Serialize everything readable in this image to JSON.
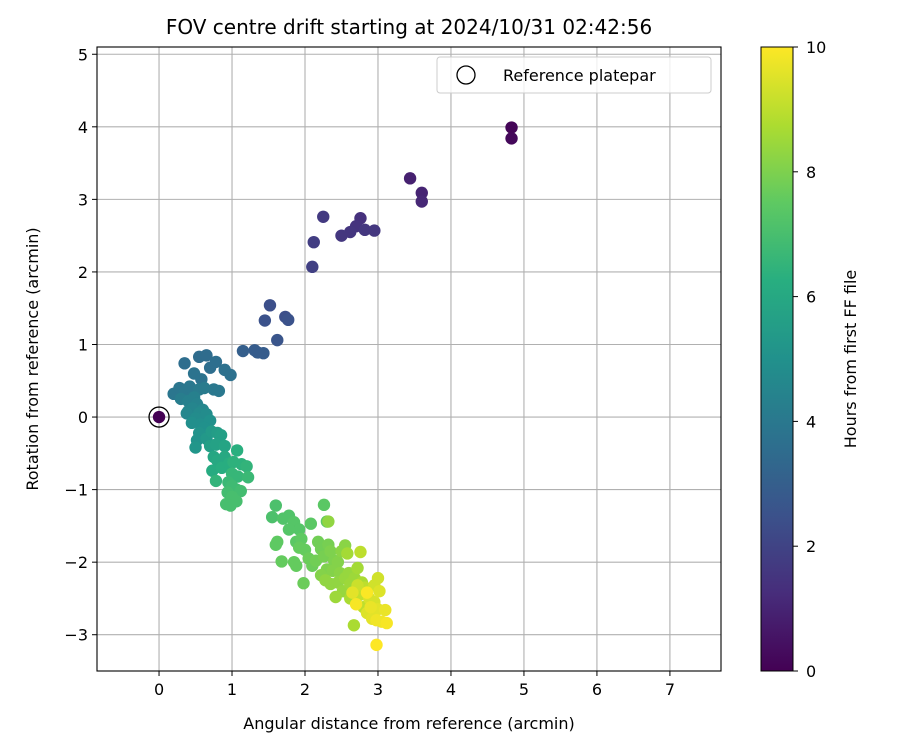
{
  "chart_data": {
    "type": "scatter",
    "title": "FOV centre drift starting at 2024/10/31 02:42:56",
    "xlabel": "Angular distance from reference (arcmin)",
    "ylabel": "Rotation from reference (arcmin)",
    "xlim": [
      -0.85,
      7.7
    ],
    "ylim": [
      -3.5,
      5.1
    ],
    "xticks": [
      0,
      1,
      2,
      3,
      4,
      5,
      6,
      7
    ],
    "yticks": [
      -3,
      -2,
      -1,
      0,
      1,
      2,
      3,
      4,
      5
    ],
    "xtick_labels": [
      "0",
      "1",
      "2",
      "3",
      "4",
      "5",
      "6",
      "7"
    ],
    "ytick_labels": [
      "−3",
      "−2",
      "−1",
      "0",
      "1",
      "2",
      "3",
      "4",
      "5"
    ],
    "grid": true,
    "legend": {
      "location": "top-right",
      "entries": [
        "Reference platepar"
      ]
    },
    "reference_point": {
      "x": 0,
      "y": 0
    },
    "colorbar": {
      "label": "Hours from first FF file",
      "range": [
        0,
        10
      ],
      "ticks": [
        0,
        2,
        4,
        6,
        8,
        10
      ],
      "tick_labels": [
        "0",
        "2",
        "4",
        "6",
        "8",
        "10"
      ],
      "colormap": "viridis"
    },
    "points": [
      {
        "x": 4.83,
        "y": 3.99,
        "c": 0.1
      },
      {
        "x": 4.83,
        "y": 3.84,
        "c": 0.2
      },
      {
        "x": 3.44,
        "y": 3.29,
        "c": 0.9
      },
      {
        "x": 3.6,
        "y": 3.09,
        "c": 1.0
      },
      {
        "x": 3.6,
        "y": 2.97,
        "c": 1.1
      },
      {
        "x": 2.76,
        "y": 2.74,
        "c": 1.4
      },
      {
        "x": 2.7,
        "y": 2.63,
        "c": 1.5
      },
      {
        "x": 2.62,
        "y": 2.55,
        "c": 1.55
      },
      {
        "x": 2.5,
        "y": 2.5,
        "c": 1.6
      },
      {
        "x": 2.82,
        "y": 2.58,
        "c": 1.6
      },
      {
        "x": 2.95,
        "y": 2.57,
        "c": 1.6
      },
      {
        "x": 2.25,
        "y": 2.76,
        "c": 1.7
      },
      {
        "x": 2.12,
        "y": 2.41,
        "c": 1.8
      },
      {
        "x": 2.1,
        "y": 2.07,
        "c": 1.9
      },
      {
        "x": 1.52,
        "y": 1.54,
        "c": 2.4
      },
      {
        "x": 1.73,
        "y": 1.38,
        "c": 2.4
      },
      {
        "x": 1.77,
        "y": 1.34,
        "c": 2.5
      },
      {
        "x": 1.45,
        "y": 1.33,
        "c": 2.5
      },
      {
        "x": 1.62,
        "y": 1.06,
        "c": 2.6
      },
      {
        "x": 1.31,
        "y": 0.92,
        "c": 2.9
      },
      {
        "x": 1.35,
        "y": 0.89,
        "c": 2.9
      },
      {
        "x": 1.15,
        "y": 0.91,
        "c": 3.0
      },
      {
        "x": 1.43,
        "y": 0.88,
        "c": 2.9
      },
      {
        "x": 0.35,
        "y": 0.74,
        "c": 3.6
      },
      {
        "x": 0.55,
        "y": 0.83,
        "c": 3.5
      },
      {
        "x": 0.65,
        "y": 0.85,
        "c": 3.5
      },
      {
        "x": 0.78,
        "y": 0.76,
        "c": 3.6
      },
      {
        "x": 0.9,
        "y": 0.65,
        "c": 3.7
      },
      {
        "x": 0.98,
        "y": 0.58,
        "c": 3.7
      },
      {
        "x": 0.7,
        "y": 0.68,
        "c": 3.6
      },
      {
        "x": 0.48,
        "y": 0.6,
        "c": 3.8
      },
      {
        "x": 0.58,
        "y": 0.52,
        "c": 3.8
      },
      {
        "x": 0.2,
        "y": 0.32,
        "c": 3.9
      },
      {
        "x": 0.28,
        "y": 0.4,
        "c": 3.9
      },
      {
        "x": 0.36,
        "y": 0.35,
        "c": 4.0
      },
      {
        "x": 0.42,
        "y": 0.42,
        "c": 4.0
      },
      {
        "x": 0.55,
        "y": 0.38,
        "c": 4.1
      },
      {
        "x": 0.62,
        "y": 0.4,
        "c": 4.1
      },
      {
        "x": 0.75,
        "y": 0.38,
        "c": 4.0
      },
      {
        "x": 0.82,
        "y": 0.36,
        "c": 4.0
      },
      {
        "x": 0.3,
        "y": 0.25,
        "c": 4.2
      },
      {
        "x": 0.4,
        "y": 0.22,
        "c": 4.3
      },
      {
        "x": 0.48,
        "y": 0.27,
        "c": 4.3
      },
      {
        "x": 0.52,
        "y": 0.18,
        "c": 4.4
      },
      {
        "x": 0.4,
        "y": 0.08,
        "c": 4.5
      },
      {
        "x": 0.38,
        "y": 0.05,
        "c": 4.6
      },
      {
        "x": 0.46,
        "y": 0.12,
        "c": 4.5
      },
      {
        "x": 0.55,
        "y": 0.05,
        "c": 4.7
      },
      {
        "x": 0.6,
        "y": 0.1,
        "c": 4.6
      },
      {
        "x": 0.65,
        "y": 0.04,
        "c": 4.8
      },
      {
        "x": 0.5,
        "y": -0.02,
        "c": 4.8
      },
      {
        "x": 0.45,
        "y": -0.08,
        "c": 4.9
      },
      {
        "x": 0.57,
        "y": -0.1,
        "c": 4.9
      },
      {
        "x": 0.7,
        "y": -0.05,
        "c": 5.0
      },
      {
        "x": 0.62,
        "y": -0.15,
        "c": 5.0
      },
      {
        "x": 0.55,
        "y": -0.22,
        "c": 5.1
      },
      {
        "x": 0.52,
        "y": -0.32,
        "c": 5.1
      },
      {
        "x": 0.5,
        "y": -0.42,
        "c": 5.2
      },
      {
        "x": 0.65,
        "y": -0.3,
        "c": 5.3
      },
      {
        "x": 0.72,
        "y": -0.2,
        "c": 5.4
      },
      {
        "x": 0.8,
        "y": -0.22,
        "c": 5.5
      },
      {
        "x": 0.85,
        "y": -0.25,
        "c": 5.6
      },
      {
        "x": 0.7,
        "y": -0.4,
        "c": 5.6
      },
      {
        "x": 0.78,
        "y": -0.38,
        "c": 5.7
      },
      {
        "x": 0.9,
        "y": -0.4,
        "c": 5.8
      },
      {
        "x": 0.75,
        "y": -0.55,
        "c": 5.9
      },
      {
        "x": 0.8,
        "y": -0.6,
        "c": 6.0
      },
      {
        "x": 0.9,
        "y": -0.55,
        "c": 6.0
      },
      {
        "x": 0.73,
        "y": -0.74,
        "c": 6.1
      },
      {
        "x": 0.86,
        "y": -0.7,
        "c": 6.2
      },
      {
        "x": 0.96,
        "y": -0.64,
        "c": 6.2
      },
      {
        "x": 1.07,
        "y": -0.46,
        "c": 6.3
      },
      {
        "x": 1.02,
        "y": -0.62,
        "c": 6.4
      },
      {
        "x": 1.13,
        "y": -0.65,
        "c": 6.4
      },
      {
        "x": 1.2,
        "y": -0.68,
        "c": 6.5
      },
      {
        "x": 0.78,
        "y": -0.88,
        "c": 6.5
      },
      {
        "x": 1.0,
        "y": -0.78,
        "c": 6.6
      },
      {
        "x": 1.08,
        "y": -0.82,
        "c": 6.6
      },
      {
        "x": 1.22,
        "y": -0.83,
        "c": 6.7
      },
      {
        "x": 0.95,
        "y": -0.9,
        "c": 6.7
      },
      {
        "x": 1.0,
        "y": -0.95,
        "c": 6.8
      },
      {
        "x": 1.06,
        "y": -1.0,
        "c": 6.8
      },
      {
        "x": 0.94,
        "y": -1.04,
        "c": 6.9
      },
      {
        "x": 1.12,
        "y": -1.02,
        "c": 6.9
      },
      {
        "x": 1.0,
        "y": -1.1,
        "c": 7.0
      },
      {
        "x": 1.06,
        "y": -1.16,
        "c": 7.0
      },
      {
        "x": 0.92,
        "y": -1.2,
        "c": 7.0
      },
      {
        "x": 0.98,
        "y": -1.22,
        "c": 7.0
      },
      {
        "x": 1.6,
        "y": -1.22,
        "c": 7.1
      },
      {
        "x": 1.55,
        "y": -1.38,
        "c": 7.1
      },
      {
        "x": 1.7,
        "y": -1.4,
        "c": 7.2
      },
      {
        "x": 1.78,
        "y": -1.36,
        "c": 7.2
      },
      {
        "x": 1.85,
        "y": -1.45,
        "c": 7.3
      },
      {
        "x": 1.92,
        "y": -1.55,
        "c": 7.3
      },
      {
        "x": 1.78,
        "y": -1.55,
        "c": 7.3
      },
      {
        "x": 2.08,
        "y": -1.47,
        "c": 7.4
      },
      {
        "x": 2.26,
        "y": -1.21,
        "c": 7.4
      },
      {
        "x": 2.3,
        "y": -1.44,
        "c": 7.5
      },
      {
        "x": 1.88,
        "y": -1.72,
        "c": 7.4
      },
      {
        "x": 1.95,
        "y": -1.68,
        "c": 7.5
      },
      {
        "x": 1.62,
        "y": -1.72,
        "c": 7.5
      },
      {
        "x": 1.6,
        "y": -1.76,
        "c": 7.5
      },
      {
        "x": 1.92,
        "y": -1.8,
        "c": 7.6
      },
      {
        "x": 2.0,
        "y": -1.83,
        "c": 7.6
      },
      {
        "x": 1.68,
        "y": -1.99,
        "c": 7.6
      },
      {
        "x": 1.85,
        "y": -2.0,
        "c": 7.6
      },
      {
        "x": 1.88,
        "y": -2.05,
        "c": 7.6
      },
      {
        "x": 1.98,
        "y": -2.29,
        "c": 7.7
      },
      {
        "x": 2.05,
        "y": -1.95,
        "c": 7.7
      },
      {
        "x": 2.1,
        "y": -2.05,
        "c": 7.7
      },
      {
        "x": 2.15,
        "y": -1.98,
        "c": 7.8
      },
      {
        "x": 2.18,
        "y": -1.72,
        "c": 7.8
      },
      {
        "x": 2.22,
        "y": -1.82,
        "c": 7.8
      },
      {
        "x": 2.26,
        "y": -1.92,
        "c": 7.9
      },
      {
        "x": 2.32,
        "y": -1.76,
        "c": 7.9
      },
      {
        "x": 2.35,
        "y": -1.85,
        "c": 8.0
      },
      {
        "x": 2.4,
        "y": -1.98,
        "c": 8.0
      },
      {
        "x": 2.3,
        "y": -2.1,
        "c": 8.0
      },
      {
        "x": 2.22,
        "y": -2.18,
        "c": 8.1
      },
      {
        "x": 2.38,
        "y": -2.12,
        "c": 8.1
      },
      {
        "x": 2.45,
        "y": -2.0,
        "c": 8.1
      },
      {
        "x": 2.5,
        "y": -1.85,
        "c": 8.2
      },
      {
        "x": 2.55,
        "y": -1.77,
        "c": 8.2
      },
      {
        "x": 2.48,
        "y": -2.15,
        "c": 8.2
      },
      {
        "x": 2.28,
        "y": -2.25,
        "c": 8.3
      },
      {
        "x": 2.35,
        "y": -2.3,
        "c": 8.3
      },
      {
        "x": 2.45,
        "y": -2.28,
        "c": 8.3
      },
      {
        "x": 2.55,
        "y": -2.22,
        "c": 8.4
      },
      {
        "x": 2.6,
        "y": -2.15,
        "c": 8.4
      },
      {
        "x": 2.52,
        "y": -2.4,
        "c": 8.4
      },
      {
        "x": 2.62,
        "y": -2.3,
        "c": 8.5
      },
      {
        "x": 2.68,
        "y": -2.22,
        "c": 8.5
      },
      {
        "x": 2.42,
        "y": -2.48,
        "c": 8.5
      },
      {
        "x": 2.32,
        "y": -1.44,
        "c": 8.3
      },
      {
        "x": 2.58,
        "y": -1.88,
        "c": 8.6
      },
      {
        "x": 2.72,
        "y": -2.08,
        "c": 8.6
      },
      {
        "x": 2.78,
        "y": -2.28,
        "c": 8.7
      },
      {
        "x": 2.62,
        "y": -2.5,
        "c": 8.7
      },
      {
        "x": 2.67,
        "y": -2.87,
        "c": 8.7
      },
      {
        "x": 2.76,
        "y": -1.86,
        "c": 9.0
      },
      {
        "x": 2.82,
        "y": -2.35,
        "c": 9.0
      },
      {
        "x": 2.75,
        "y": -2.45,
        "c": 9.1
      },
      {
        "x": 2.8,
        "y": -2.62,
        "c": 9.0
      },
      {
        "x": 2.95,
        "y": -2.32,
        "c": 9.3
      },
      {
        "x": 3.0,
        "y": -2.22,
        "c": 9.3
      },
      {
        "x": 2.88,
        "y": -2.5,
        "c": 9.4
      },
      {
        "x": 2.95,
        "y": -2.55,
        "c": 9.4
      },
      {
        "x": 3.02,
        "y": -2.4,
        "c": 9.5
      },
      {
        "x": 2.85,
        "y": -2.7,
        "c": 9.5
      },
      {
        "x": 2.92,
        "y": -2.78,
        "c": 9.6
      },
      {
        "x": 3.0,
        "y": -2.65,
        "c": 9.6
      },
      {
        "x": 3.1,
        "y": -2.66,
        "c": 9.7
      },
      {
        "x": 2.98,
        "y": -2.8,
        "c": 9.8
      },
      {
        "x": 3.05,
        "y": -2.82,
        "c": 9.8
      },
      {
        "x": 3.12,
        "y": -2.84,
        "c": 9.9
      },
      {
        "x": 2.98,
        "y": -3.14,
        "c": 10.0
      },
      {
        "x": 2.9,
        "y": -2.62,
        "c": 9.7
      },
      {
        "x": 2.72,
        "y": -2.32,
        "c": 9.2
      },
      {
        "x": 2.65,
        "y": -2.42,
        "c": 9.6
      },
      {
        "x": 2.7,
        "y": -2.58,
        "c": 9.9
      },
      {
        "x": 2.85,
        "y": -2.42,
        "c": 9.95
      }
    ]
  }
}
